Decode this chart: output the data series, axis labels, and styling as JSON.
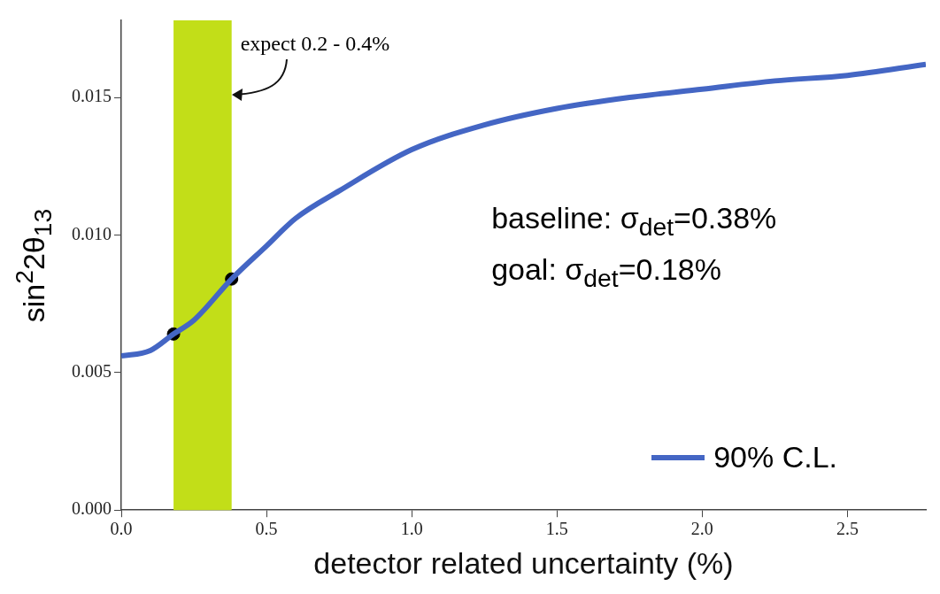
{
  "chart_data": {
    "type": "line",
    "xlabel": "detector related uncertainty (%)",
    "ylabel": "sin$^{2}$2θ$_{13}$",
    "xlim": [
      0,
      2.77
    ],
    "ylim": [
      0,
      0.0178
    ],
    "xticks": [
      {
        "value": 0,
        "label": "0.0"
      },
      {
        "value": 0.5,
        "label": "0.5"
      },
      {
        "value": 1,
        "label": "1.0"
      },
      {
        "value": 1.5,
        "label": "1.5"
      },
      {
        "value": 2,
        "label": "2.0"
      },
      {
        "value": 2.5,
        "label": "2.5"
      }
    ],
    "yticks": [
      {
        "value": 0,
        "label": "0.000"
      },
      {
        "value": 0.005,
        "label": "0.005"
      },
      {
        "value": 0.01,
        "label": "0.010"
      },
      {
        "value": 0.015,
        "label": "0.015"
      }
    ],
    "grid": false,
    "legend": "bottom right",
    "series": [
      {
        "name": "90% C.L.",
        "color": "#4466c4",
        "marker": "none",
        "x": [
          0,
          0.1,
          0.18,
          0.25,
          0.38,
          0.5,
          0.6,
          0.75,
          1,
          1.25,
          1.5,
          1.75,
          2,
          2.25,
          2.5,
          2.77
        ],
        "values": [
          0.0056,
          0.0058,
          0.0064,
          0.0069,
          0.0084,
          0.0096,
          0.0106,
          0.0116,
          0.0131,
          0.014,
          0.0146,
          0.015,
          0.0153,
          0.0156,
          0.0158,
          0.0162
        ]
      },
      {
        "type": "scatter",
        "color": "#000000",
        "marker": "circle",
        "x": [
          0.18,
          0.38
        ],
        "values": [
          0.0064,
          0.0084
        ]
      }
    ],
    "bands": [
      {
        "axis": "x",
        "from": 0.18,
        "to": 0.38,
        "color": "#c2de18"
      }
    ],
    "annotations": [
      {
        "text": "expect 0.2 - 0.4%",
        "x": 0.38,
        "y": 0.0151
      },
      "baseline: σ$_{det}$=0.38%",
      "goal: σ$_{det}$=0.18%"
    ]
  }
}
